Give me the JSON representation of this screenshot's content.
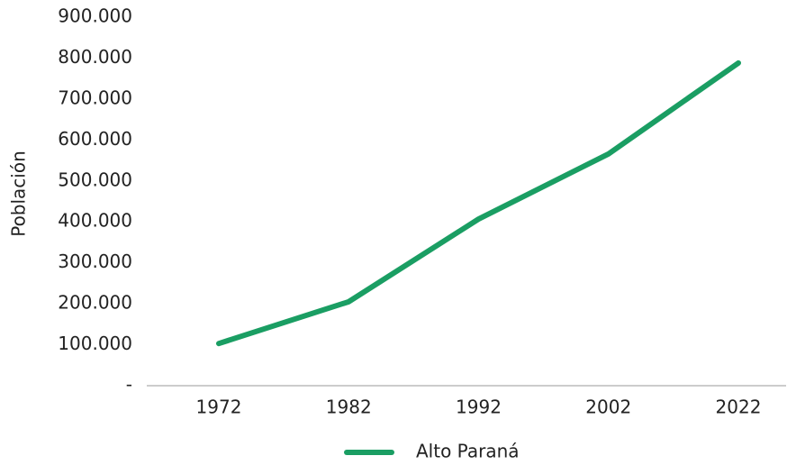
{
  "chart_data": {
    "type": "line",
    "ylabel": "Población",
    "categories": [
      "1972",
      "1982",
      "1992",
      "2002",
      "2022"
    ],
    "series": [
      {
        "name": "Alto Paraná",
        "color": "#1a9e63",
        "values": [
          103000,
          205000,
          407000,
          566000,
          788000
        ]
      }
    ],
    "ylim": [
      0,
      900000
    ],
    "yticks": [
      {
        "value": 0,
        "label": "-"
      },
      {
        "value": 100000,
        "label": "100.000"
      },
      {
        "value": 200000,
        "label": "200.000"
      },
      {
        "value": 300000,
        "label": "300.000"
      },
      {
        "value": 400000,
        "label": "400.000"
      },
      {
        "value": 500000,
        "label": "500.000"
      },
      {
        "value": 600000,
        "label": "600.000"
      },
      {
        "value": 700000,
        "label": "700.000"
      },
      {
        "value": 800000,
        "label": "800.000"
      },
      {
        "value": 900000,
        "label": "900.000"
      }
    ],
    "grid": false,
    "legend": "bottom"
  }
}
